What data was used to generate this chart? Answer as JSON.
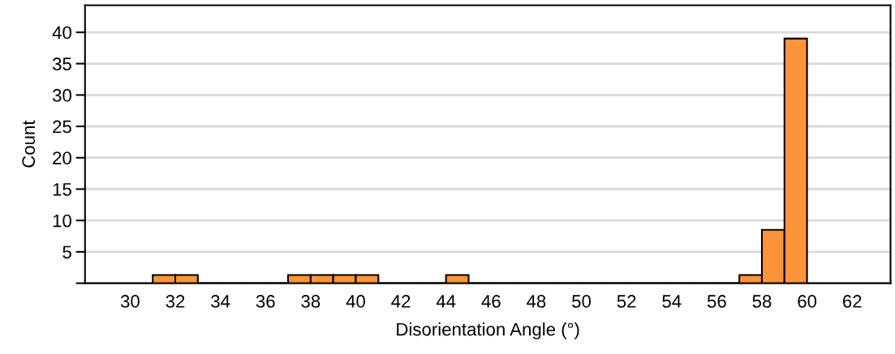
{
  "chart_data": {
    "type": "histogram",
    "xlabel": "Disorientation Angle (°)",
    "ylabel": "Count",
    "bins": [
      31,
      32,
      33,
      34,
      35,
      36,
      37,
      38,
      39,
      40,
      41,
      42,
      43,
      44,
      45,
      46,
      47,
      48,
      49,
      50,
      51,
      52,
      53,
      54,
      55,
      56,
      57,
      58,
      59,
      60
    ],
    "values": [
      1.3,
      1.3,
      0,
      0,
      0,
      0,
      1.3,
      1.3,
      1.3,
      1.3,
      0,
      0,
      0,
      1.3,
      0,
      0,
      0,
      0,
      0,
      0,
      0,
      0,
      0,
      0,
      0,
      0,
      1.3,
      8.5,
      39
    ],
    "color": "#fd9439",
    "xlim": [
      28,
      63.7
    ],
    "ylim": [
      0,
      44.3
    ],
    "xticks": [
      30,
      32,
      34,
      36,
      38,
      40,
      42,
      44,
      46,
      48,
      50,
      52,
      54,
      56,
      58,
      60,
      62
    ],
    "yticks": [
      {
        "value": 0,
        "label": null
      },
      5,
      10,
      15,
      20,
      25,
      30,
      35,
      40
    ],
    "grid": "y"
  }
}
